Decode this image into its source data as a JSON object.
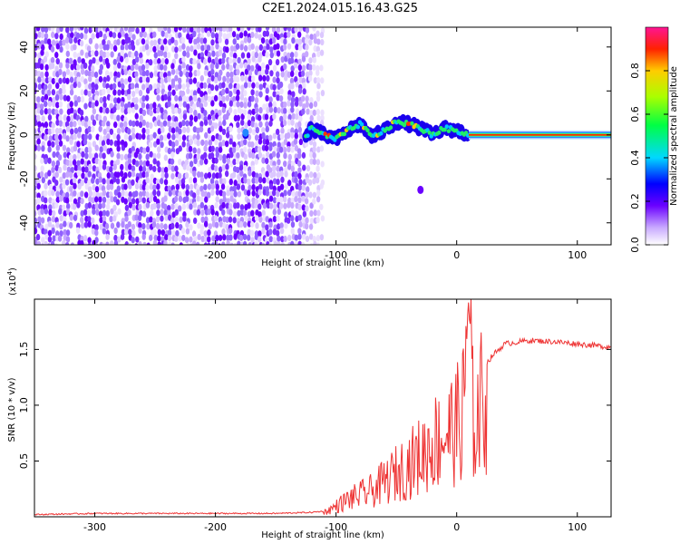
{
  "title": "C2E1.2024.015.16.43.G25",
  "chart_data": [
    {
      "type": "heatmap",
      "xlabel": "Height of straight line (km)",
      "ylabel": "Frequency (Hz)",
      "xlim": [
        -350,
        128
      ],
      "ylim": [
        -50,
        49
      ],
      "xticks": [
        -300,
        -200,
        -100,
        0,
        100
      ],
      "yticks": [
        -40,
        -20,
        0,
        20,
        40
      ],
      "colorbar": {
        "label": "Normalized spectral amplitude",
        "range": [
          0.0,
          1.0
        ],
        "ticks": [
          0.0,
          0.2,
          0.4,
          0.6,
          0.8
        ]
      },
      "regions": [
        {
          "description_x": [
            -350,
            -115
          ],
          "level": "noise, low amplitude scattered"
        },
        {
          "description_x": [
            -125,
            10
          ],
          "level": "tracked signal near 0 Hz, medium amplitude"
        },
        {
          "description_x": [
            10,
            128
          ],
          "level": "steady tone at 0 Hz, amplitude ~0.95"
        }
      ],
      "signal_track": [
        {
          "x": -122,
          "y": 3
        },
        {
          "x": -110,
          "y": 0
        },
        {
          "x": -100,
          "y": -2
        },
        {
          "x": -90,
          "y": 2
        },
        {
          "x": -80,
          "y": 5
        },
        {
          "x": -70,
          "y": -1
        },
        {
          "x": -60,
          "y": 2
        },
        {
          "x": -50,
          "y": 6
        },
        {
          "x": -40,
          "y": 5
        },
        {
          "x": -30,
          "y": 3
        },
        {
          "x": -20,
          "y": 0
        },
        {
          "x": -10,
          "y": 3
        },
        {
          "x": 0,
          "y": 2
        },
        {
          "x": 10,
          "y": 0
        },
        {
          "x": 128,
          "y": 0
        }
      ]
    },
    {
      "type": "line",
      "xlabel": "Height of straight line (km)",
      "ylabel": "SNR (10 * v/v)",
      "yscale_label": "(x10",
      "yscale_exp": "4",
      "yscale_close": ")",
      "xlim": [
        -350,
        128
      ],
      "ylim": [
        0,
        1.95
      ],
      "xticks": [
        -300,
        -200,
        -100,
        0,
        100
      ],
      "yticks": [
        0.5,
        1.0,
        1.5
      ],
      "series": [
        {
          "color": "#ee3333",
          "x": [
            -350,
            -300,
            -250,
            -200,
            -150,
            -120,
            -110,
            -100,
            -90,
            -80,
            -70,
            -60,
            -50,
            -40,
            -30,
            -20,
            -10,
            0,
            5,
            10,
            15,
            20,
            30,
            40,
            60,
            80,
            100,
            128
          ],
          "y": [
            0.02,
            0.03,
            0.03,
            0.03,
            0.03,
            0.04,
            0.05,
            0.12,
            0.2,
            0.25,
            0.3,
            0.4,
            0.5,
            0.6,
            0.7,
            0.85,
            0.95,
            1.05,
            1.2,
            1.5,
            1.05,
            1.3,
            1.45,
            1.55,
            1.58,
            1.57,
            1.55,
            1.52
          ]
        }
      ]
    }
  ]
}
